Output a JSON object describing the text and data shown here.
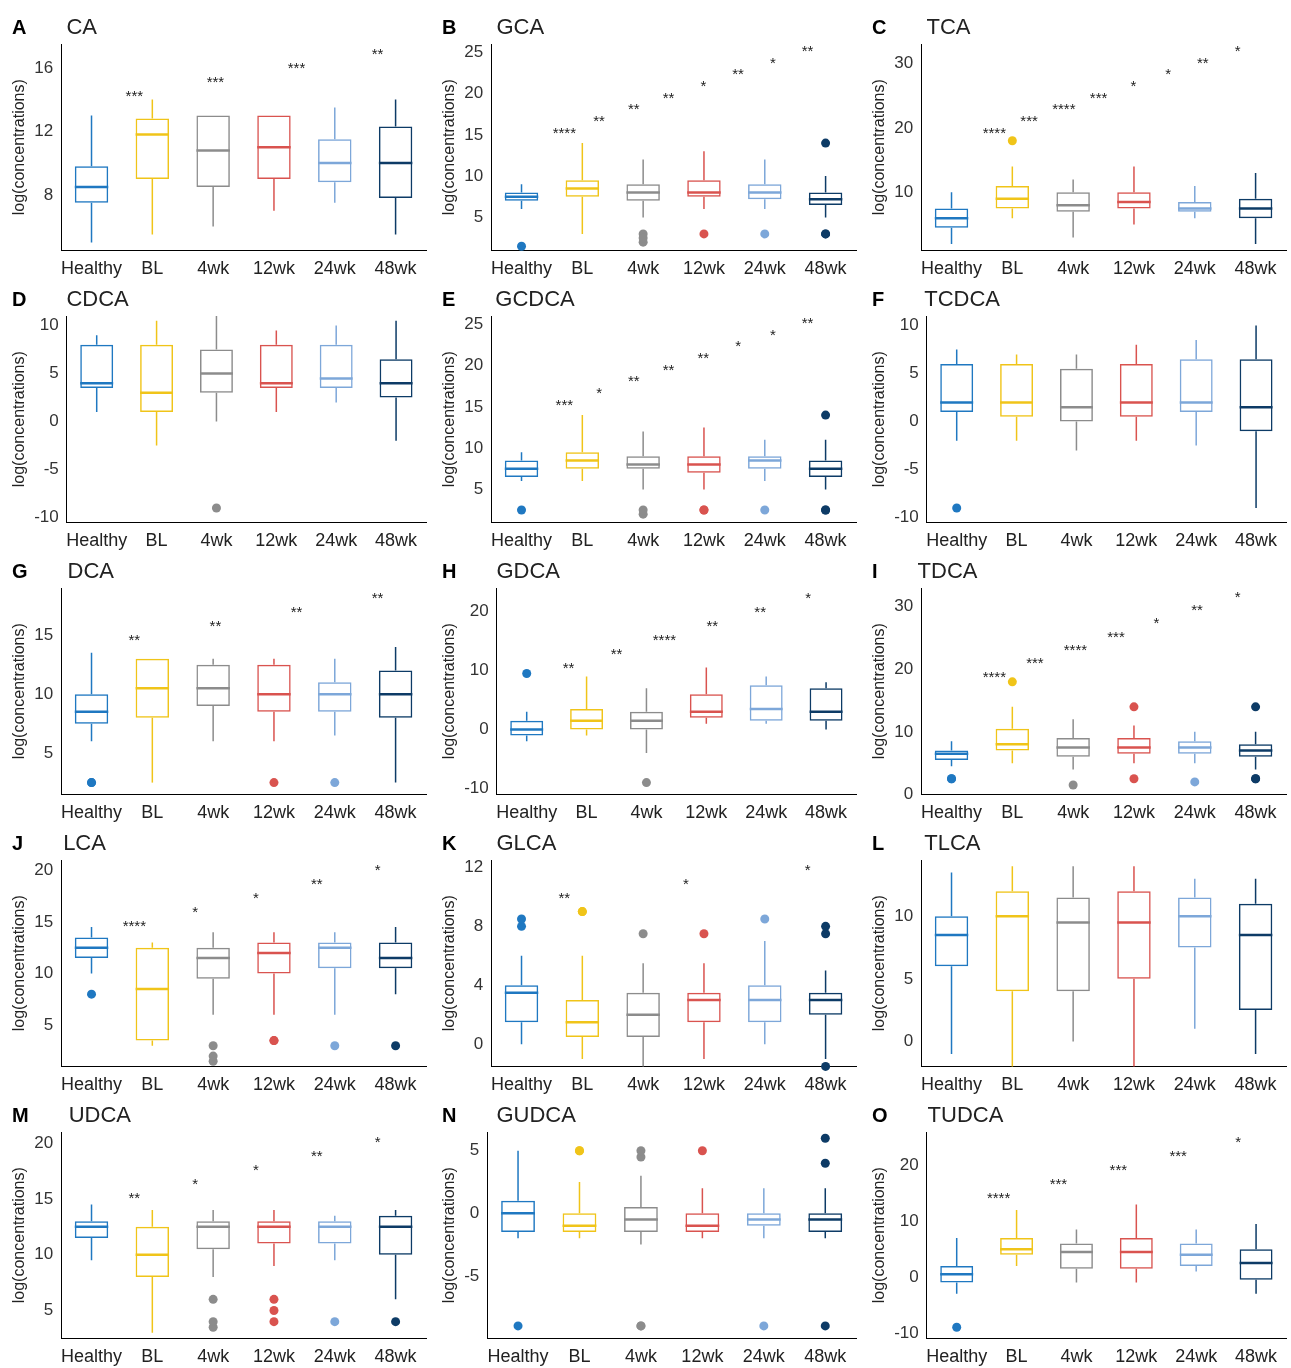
{
  "chart_data": [
    {
      "type": "box",
      "subtitle": "A",
      "title": "CA",
      "ylabel": "log(concentrations)",
      "categories": [
        "Healthy",
        "BL",
        "4wk",
        "12wk",
        "24wk",
        "48wk"
      ],
      "colors": [
        "#1f78c1",
        "#f0c419",
        "#8c8c8c",
        "#d9534f",
        "#7da7d9",
        "#0d3b66"
      ],
      "ylim": [
        4.5,
        17.5
      ],
      "yticks": [
        8,
        12,
        16
      ],
      "boxes": [
        {
          "low": 5,
          "q1": 7.5,
          "median": 8.5,
          "q3": 9.8,
          "high": 13
        },
        {
          "low": 5.5,
          "q1": 9,
          "median": 11.8,
          "q3": 12.8,
          "high": 14
        },
        {
          "low": 6,
          "q1": 8.5,
          "median": 10.8,
          "q3": 13,
          "high": 13
        },
        {
          "low": 7,
          "q1": 9,
          "median": 11,
          "q3": 13,
          "high": 13
        },
        {
          "low": 7.5,
          "q1": 8.8,
          "median": 10,
          "q3": 11.5,
          "high": 13.5
        },
        {
          "low": 5.5,
          "q1": 7.8,
          "median": 10,
          "q3": 12.3,
          "high": 14
        }
      ],
      "annotations": [
        "***",
        "***",
        "***",
        "**"
      ]
    },
    {
      "type": "box",
      "subtitle": "B",
      "title": "GCA",
      "ylabel": "log(concentrations)",
      "categories": [
        "Healthy",
        "BL",
        "4wk",
        "12wk",
        "24wk",
        "48wk"
      ],
      "colors": [
        "#1f78c1",
        "#f0c419",
        "#8c8c8c",
        "#d9534f",
        "#7da7d9",
        "#0d3b66"
      ],
      "ylim": [
        1,
        26
      ],
      "yticks": [
        5,
        10,
        15,
        20,
        25
      ],
      "boxes": [
        {
          "low": 6,
          "q1": 7,
          "median": 7.5,
          "q3": 8,
          "high": 9,
          "outliers": [
            1.5
          ]
        },
        {
          "low": 3,
          "q1": 7.5,
          "median": 8.5,
          "q3": 9.5,
          "high": 14
        },
        {
          "low": 5,
          "q1": 7,
          "median": 8,
          "q3": 9,
          "high": 12,
          "outliers": [
            2,
            3,
            2.5
          ]
        },
        {
          "low": 6,
          "q1": 7.5,
          "median": 8,
          "q3": 9.5,
          "high": 13,
          "outliers": [
            3
          ]
        },
        {
          "low": 6,
          "q1": 7.2,
          "median": 8,
          "q3": 9,
          "high": 12,
          "outliers": [
            3
          ]
        },
        {
          "low": 5,
          "q1": 6.5,
          "median": 7.2,
          "q3": 8,
          "high": 10,
          "outliers": [
            3,
            3,
            14
          ]
        }
      ],
      "annotations": [
        "****",
        "**",
        "**",
        "**",
        "*",
        "**",
        "*",
        "**"
      ]
    },
    {
      "type": "box",
      "subtitle": "C",
      "title": "TCA",
      "ylabel": "log(concentrations)",
      "categories": [
        "Healthy",
        "BL",
        "4wk",
        "12wk",
        "24wk",
        "48wk"
      ],
      "colors": [
        "#1f78c1",
        "#f0c419",
        "#8c8c8c",
        "#d9534f",
        "#7da7d9",
        "#0d3b66"
      ],
      "ylim": [
        1,
        33
      ],
      "yticks": [
        10,
        20,
        30
      ],
      "boxes": [
        {
          "low": 2,
          "q1": 4.5,
          "median": 6,
          "q3": 7.5,
          "high": 10
        },
        {
          "low": 6,
          "q1": 7.5,
          "median": 9,
          "q3": 11,
          "high": 14,
          "outliers": [
            18
          ]
        },
        {
          "low": 3,
          "q1": 7,
          "median": 8,
          "q3": 10,
          "high": 12
        },
        {
          "low": 5,
          "q1": 7.5,
          "median": 8.5,
          "q3": 10,
          "high": 14
        },
        {
          "low": 6,
          "q1": 7,
          "median": 7.5,
          "q3": 8.5,
          "high": 11
        },
        {
          "low": 2,
          "q1": 6,
          "median": 7.5,
          "q3": 9,
          "high": 13
        }
      ],
      "annotations": [
        "****",
        "***",
        "****",
        "***",
        "*",
        "*",
        "**",
        "*"
      ]
    },
    {
      "type": "box",
      "subtitle": "D",
      "title": "CDCA",
      "ylabel": "log(concentrations)",
      "categories": [
        "Healthy",
        "BL",
        "4wk",
        "12wk",
        "24wk",
        "48wk"
      ],
      "colors": [
        "#1f78c1",
        "#f0c419",
        "#8c8c8c",
        "#d9534f",
        "#7da7d9",
        "#0d3b66"
      ],
      "ylim": [
        -10.5,
        11
      ],
      "yticks": [
        -10,
        -5,
        0,
        5,
        10
      ],
      "boxes": [
        {
          "low": 1,
          "q1": 3.5,
          "median": 4,
          "q3": 8,
          "high": 9
        },
        {
          "low": -2.5,
          "q1": 1,
          "median": 3,
          "q3": 8,
          "high": 10.5
        },
        {
          "low": 0,
          "q1": 3,
          "median": 5,
          "q3": 7.5,
          "high": 11,
          "outliers": [
            -9
          ]
        },
        {
          "low": 1,
          "q1": 3.5,
          "median": 4,
          "q3": 8,
          "high": 9.5
        },
        {
          "low": 2,
          "q1": 3.5,
          "median": 4.5,
          "q3": 8,
          "high": 10
        },
        {
          "low": -2,
          "q1": 2.5,
          "median": 4,
          "q3": 6.5,
          "high": 10.5
        }
      ]
    },
    {
      "type": "box",
      "subtitle": "E",
      "title": "GCDCA",
      "ylabel": "log(concentrations)",
      "categories": [
        "Healthy",
        "BL",
        "4wk",
        "12wk",
        "24wk",
        "48wk"
      ],
      "colors": [
        "#1f78c1",
        "#f0c419",
        "#8c8c8c",
        "#d9534f",
        "#7da7d9",
        "#0d3b66"
      ],
      "ylim": [
        1,
        26
      ],
      "yticks": [
        5,
        10,
        15,
        20,
        25
      ],
      "boxes": [
        {
          "low": 6,
          "q1": 6.5,
          "median": 7.5,
          "q3": 8.5,
          "high": 9.5,
          "outliers": [
            2.5
          ]
        },
        {
          "low": 6,
          "q1": 7.5,
          "median": 8.5,
          "q3": 9.5,
          "high": 14
        },
        {
          "low": 5,
          "q1": 7.5,
          "median": 8,
          "q3": 9,
          "high": 12,
          "outliers": [
            2,
            2.5
          ]
        },
        {
          "low": 5,
          "q1": 7,
          "median": 8,
          "q3": 9,
          "high": 12.5,
          "outliers": [
            2.5,
            2.5
          ]
        },
        {
          "low": 6,
          "q1": 7.5,
          "median": 8.5,
          "q3": 9,
          "high": 11,
          "outliers": [
            2.5
          ]
        },
        {
          "low": 5,
          "q1": 6.5,
          "median": 7.5,
          "q3": 8.5,
          "high": 11,
          "outliers": [
            2.5,
            2.5,
            14
          ]
        }
      ],
      "annotations": [
        "***",
        "*",
        "**",
        "**",
        "**",
        "*",
        "*",
        "**"
      ]
    },
    {
      "type": "box",
      "subtitle": "F",
      "title": "TCDCA",
      "ylabel": "log(concentrations)",
      "categories": [
        "Healthy",
        "BL",
        "4wk",
        "12wk",
        "24wk",
        "48wk"
      ],
      "colors": [
        "#1f78c1",
        "#f0c419",
        "#8c8c8c",
        "#d9534f",
        "#7da7d9",
        "#0d3b66"
      ],
      "ylim": [
        -10.5,
        11
      ],
      "yticks": [
        -10,
        -5,
        0,
        5,
        10
      ],
      "boxes": [
        {
          "low": -2,
          "q1": 1,
          "median": 2,
          "q3": 6,
          "high": 7.5,
          "outliers": [
            -9
          ]
        },
        {
          "low": -2,
          "q1": 0.5,
          "median": 2,
          "q3": 6,
          "high": 7
        },
        {
          "low": -3,
          "q1": 0,
          "median": 1.5,
          "q3": 5.5,
          "high": 7
        },
        {
          "low": -2,
          "q1": 0.5,
          "median": 2,
          "q3": 6,
          "high": 8
        },
        {
          "low": -2.5,
          "q1": 1,
          "median": 2,
          "q3": 6.5,
          "high": 8.5
        },
        {
          "low": -9,
          "q1": -1,
          "median": 1.5,
          "q3": 6.5,
          "high": 10
        }
      ]
    },
    {
      "type": "box",
      "subtitle": "G",
      "title": "DCA",
      "ylabel": "log(concentrations)",
      "categories": [
        "Healthy",
        "BL",
        "4wk",
        "12wk",
        "24wk",
        "48wk"
      ],
      "colors": [
        "#1f78c1",
        "#f0c419",
        "#8c8c8c",
        "#d9534f",
        "#7da7d9",
        "#0d3b66"
      ],
      "ylim": [
        1.5,
        19
      ],
      "yticks": [
        5,
        10,
        15
      ],
      "boxes": [
        {
          "low": 6,
          "q1": 7.5,
          "median": 8.5,
          "q3": 10,
          "high": 13.5,
          "outliers": [
            2.5,
            2.5
          ]
        },
        {
          "low": 2.5,
          "q1": 8,
          "median": 10.5,
          "q3": 13,
          "high": 13
        },
        {
          "low": 6,
          "q1": 9,
          "median": 10.5,
          "q3": 12.5,
          "high": 13
        },
        {
          "low": 6,
          "q1": 8.5,
          "median": 10,
          "q3": 12.5,
          "high": 13,
          "outliers": [
            2.5
          ]
        },
        {
          "low": 6.5,
          "q1": 8.5,
          "median": 10,
          "q3": 11,
          "high": 13,
          "outliers": [
            2.5
          ]
        },
        {
          "low": 2.5,
          "q1": 8,
          "median": 10,
          "q3": 12,
          "high": 14
        }
      ],
      "annotations": [
        "**",
        "**",
        "**",
        "**"
      ]
    },
    {
      "type": "box",
      "subtitle": "H",
      "title": "GDCA",
      "ylabel": "log(concentrations)",
      "categories": [
        "Healthy",
        "BL",
        "4wk",
        "12wk",
        "24wk",
        "48wk"
      ],
      "colors": [
        "#1f78c1",
        "#f0c419",
        "#8c8c8c",
        "#d9534f",
        "#7da7d9",
        "#0d3b66"
      ],
      "ylim": [
        -11,
        24
      ],
      "yticks": [
        -10,
        0,
        10,
        20
      ],
      "boxes": [
        {
          "low": -2,
          "q1": -1,
          "median": 0,
          "q3": 1.5,
          "high": 3,
          "outliers": [
            9.5
          ]
        },
        {
          "low": -1,
          "q1": 0,
          "median": 1.5,
          "q3": 3.5,
          "high": 9
        },
        {
          "low": -4,
          "q1": 0,
          "median": 1.5,
          "q3": 3,
          "high": 7,
          "outliers": [
            -9
          ]
        },
        {
          "low": 1,
          "q1": 2,
          "median": 3,
          "q3": 6,
          "high": 10.5
        },
        {
          "low": 1,
          "q1": 1.5,
          "median": 3.5,
          "q3": 7.5,
          "high": 9
        },
        {
          "low": 0,
          "q1": 1.5,
          "median": 3,
          "q3": 7,
          "high": 8
        }
      ],
      "annotations": [
        "**",
        "**",
        "****",
        "**",
        "**",
        "*"
      ]
    },
    {
      "type": "box",
      "subtitle": "I",
      "title": "TDCA",
      "ylabel": "log(concentrations)",
      "categories": [
        "Healthy",
        "BL",
        "4wk",
        "12wk",
        "24wk",
        "48wk"
      ],
      "colors": [
        "#1f78c1",
        "#f0c419",
        "#8c8c8c",
        "#d9534f",
        "#7da7d9",
        "#0d3b66"
      ],
      "ylim": [
        0,
        33
      ],
      "yticks": [
        0,
        10,
        20,
        30
      ],
      "boxes": [
        {
          "low": 4.5,
          "q1": 5.5,
          "median": 6.5,
          "q3": 7,
          "high": 8.5,
          "outliers": [
            2.5,
            2.5
          ]
        },
        {
          "low": 5,
          "q1": 7,
          "median": 8,
          "q3": 10.5,
          "high": 14,
          "outliers": [
            18
          ]
        },
        {
          "low": 4,
          "q1": 6,
          "median": 7.5,
          "q3": 9,
          "high": 12,
          "outliers": [
            1.5
          ]
        },
        {
          "low": 5,
          "q1": 6.5,
          "median": 7.5,
          "q3": 9,
          "high": 11,
          "outliers": [
            2.5,
            14
          ]
        },
        {
          "low": 5,
          "q1": 6.5,
          "median": 7.5,
          "q3": 8.5,
          "high": 10,
          "outliers": [
            2
          ]
        },
        {
          "low": 4,
          "q1": 6,
          "median": 7,
          "q3": 8,
          "high": 10,
          "outliers": [
            2.5,
            2.5,
            14
          ]
        }
      ],
      "annotations": [
        "****",
        "***",
        "****",
        "***",
        "*",
        "**",
        "*"
      ]
    },
    {
      "type": "box",
      "subtitle": "J",
      "title": "LCA",
      "ylabel": "log(concentrations)",
      "categories": [
        "Healthy",
        "BL",
        "4wk",
        "12wk",
        "24wk",
        "48wk"
      ],
      "colors": [
        "#1f78c1",
        "#f0c419",
        "#8c8c8c",
        "#d9534f",
        "#7da7d9",
        "#0d3b66"
      ],
      "ylim": [
        1,
        21
      ],
      "yticks": [
        5,
        10,
        15,
        20
      ],
      "boxes": [
        {
          "low": 10,
          "q1": 11.5,
          "median": 12.5,
          "q3": 13.5,
          "high": 14.5,
          "outliers": [
            8
          ]
        },
        {
          "low": 3,
          "q1": 3.5,
          "median": 8.5,
          "q3": 12.5,
          "high": 13
        },
        {
          "low": 6,
          "q1": 9.5,
          "median": 11.5,
          "q3": 12.5,
          "high": 14,
          "outliers": [
            1.5,
            2,
            3
          ]
        },
        {
          "low": 6,
          "q1": 10,
          "median": 12,
          "q3": 13,
          "high": 14,
          "outliers": [
            3.5,
            3.5
          ]
        },
        {
          "low": 6,
          "q1": 10.5,
          "median": 12.5,
          "q3": 13,
          "high": 14,
          "outliers": [
            3
          ]
        },
        {
          "low": 8,
          "q1": 10.5,
          "median": 11.5,
          "q3": 13,
          "high": 14.5,
          "outliers": [
            3
          ]
        }
      ],
      "annotations": [
        "****",
        "*",
        "*",
        "**",
        "*"
      ]
    },
    {
      "type": "box",
      "subtitle": "K",
      "title": "GLCA",
      "ylabel": "log(concentrations)",
      "categories": [
        "Healthy",
        "BL",
        "4wk",
        "12wk",
        "24wk",
        "48wk"
      ],
      "colors": [
        "#1f78c1",
        "#f0c419",
        "#8c8c8c",
        "#d9534f",
        "#7da7d9",
        "#0d3b66"
      ],
      "ylim": [
        -1.5,
        12.5
      ],
      "yticks": [
        0,
        4,
        8,
        12
      ],
      "boxes": [
        {
          "low": 0,
          "q1": 1.5,
          "median": 3.5,
          "q3": 4,
          "high": 6,
          "outliers": [
            8,
            8.5
          ]
        },
        {
          "low": -1,
          "q1": 0.5,
          "median": 1.5,
          "q3": 3,
          "high": 6,
          "outliers": [
            9,
            9
          ]
        },
        {
          "low": -1.5,
          "q1": 0.5,
          "median": 2,
          "q3": 3.5,
          "high": 5.5,
          "outliers": [
            7.5
          ]
        },
        {
          "low": -1,
          "q1": 1.5,
          "median": 3,
          "q3": 3.5,
          "high": 5.5,
          "outliers": [
            7.5
          ]
        },
        {
          "low": 0,
          "q1": 1.5,
          "median": 3,
          "q3": 4,
          "high": 7,
          "outliers": [
            8.5
          ]
        },
        {
          "low": -1,
          "q1": 2,
          "median": 3,
          "q3": 3.5,
          "high": 5,
          "outliers": [
            -1.5,
            7.5,
            8
          ]
        }
      ],
      "annotations": [
        "**",
        "*",
        "*"
      ]
    },
    {
      "type": "box",
      "subtitle": "L",
      "title": "TLCA",
      "ylabel": "log(concentrations)",
      "categories": [
        "Healthy",
        "BL",
        "4wk",
        "12wk",
        "24wk",
        "48wk"
      ],
      "colors": [
        "#1f78c1",
        "#f0c419",
        "#8c8c8c",
        "#d9534f",
        "#7da7d9",
        "#0d3b66"
      ],
      "ylim": [
        -2,
        14.5
      ],
      "yticks": [
        0,
        5,
        10
      ],
      "boxes": [
        {
          "low": -1,
          "q1": 6,
          "median": 8.5,
          "q3": 10,
          "high": 13.5
        },
        {
          "low": -2,
          "q1": 4,
          "median": 10,
          "q3": 12,
          "high": 14
        },
        {
          "low": 0,
          "q1": 4,
          "median": 9.5,
          "q3": 11.5,
          "high": 14
        },
        {
          "low": -2,
          "q1": 5,
          "median": 9.5,
          "q3": 12,
          "high": 14
        },
        {
          "low": 1,
          "q1": 7.5,
          "median": 10,
          "q3": 11.5,
          "high": 13
        },
        {
          "low": -1,
          "q1": 2.5,
          "median": 8.5,
          "q3": 11,
          "high": 13
        }
      ]
    },
    {
      "type": "box",
      "subtitle": "M",
      "title": "UDCA",
      "ylabel": "log(concentrations)",
      "categories": [
        "Healthy",
        "BL",
        "4wk",
        "12wk",
        "24wk",
        "48wk"
      ],
      "colors": [
        "#1f78c1",
        "#f0c419",
        "#8c8c8c",
        "#d9534f",
        "#7da7d9",
        "#0d3b66"
      ],
      "ylim": [
        2.5,
        21
      ],
      "yticks": [
        5,
        10,
        15,
        20
      ],
      "boxes": [
        {
          "low": 9.5,
          "q1": 11.5,
          "median": 12.5,
          "q3": 13,
          "high": 14.5
        },
        {
          "low": 3,
          "q1": 8,
          "median": 10,
          "q3": 12.5,
          "high": 14
        },
        {
          "low": 8,
          "q1": 10.5,
          "median": 12.5,
          "q3": 13,
          "high": 14,
          "outliers": [
            3.5,
            4,
            6
          ]
        },
        {
          "low": 9,
          "q1": 11,
          "median": 12.5,
          "q3": 13,
          "high": 14,
          "outliers": [
            4,
            5,
            6
          ]
        },
        {
          "low": 9.5,
          "q1": 11,
          "median": 12.5,
          "q3": 13,
          "high": 13.5,
          "outliers": [
            4
          ]
        },
        {
          "low": 6,
          "q1": 10,
          "median": 12.5,
          "q3": 13.5,
          "high": 14,
          "outliers": [
            4
          ]
        }
      ],
      "annotations": [
        "**",
        "*",
        "*",
        "**",
        "*"
      ]
    },
    {
      "type": "box",
      "subtitle": "N",
      "title": "GUDCA",
      "ylabel": "log(concentrations)",
      "categories": [
        "Healthy",
        "BL",
        "4wk",
        "12wk",
        "24wk",
        "48wk"
      ],
      "colors": [
        "#1f78c1",
        "#f0c419",
        "#8c8c8c",
        "#d9534f",
        "#7da7d9",
        "#0d3b66"
      ],
      "ylim": [
        -10,
        6.5
      ],
      "yticks": [
        -5,
        0,
        5
      ],
      "boxes": [
        {
          "low": -2,
          "q1": -1.5,
          "median": 0,
          "q3": 1,
          "high": 5,
          "outliers": [
            -9
          ]
        },
        {
          "low": -2,
          "q1": -1.5,
          "median": -1,
          "q3": 0,
          "high": 2.5,
          "outliers": [
            5,
            5
          ]
        },
        {
          "low": -2.5,
          "q1": -1.5,
          "median": -0.5,
          "q3": 0.5,
          "high": 3,
          "outliers": [
            -9,
            -9,
            4.5,
            5
          ]
        },
        {
          "low": -2,
          "q1": -1.5,
          "median": -1,
          "q3": 0,
          "high": 2,
          "outliers": [
            5
          ]
        },
        {
          "low": -2,
          "q1": -1,
          "median": -0.5,
          "q3": 0,
          "high": 2,
          "outliers": [
            -9
          ]
        },
        {
          "low": -2,
          "q1": -1.5,
          "median": -0.5,
          "q3": 0,
          "high": 2,
          "outliers": [
            -9,
            4,
            6
          ]
        }
      ]
    },
    {
      "type": "box",
      "subtitle": "O",
      "title": "TUDCA",
      "ylabel": "log(concentrations)",
      "categories": [
        "Healthy",
        "BL",
        "4wk",
        "12wk",
        "24wk",
        "48wk"
      ],
      "colors": [
        "#1f78c1",
        "#f0c419",
        "#8c8c8c",
        "#d9534f",
        "#7da7d9",
        "#0d3b66"
      ],
      "ylim": [
        -11,
        26
      ],
      "yticks": [
        -10,
        0,
        10,
        20
      ],
      "boxes": [
        {
          "low": -3,
          "q1": -1,
          "median": 0.5,
          "q3": 2,
          "high": 7,
          "outliers": [
            -9
          ]
        },
        {
          "low": 2,
          "q1": 4,
          "median": 5,
          "q3": 7,
          "high": 12
        },
        {
          "low": -1,
          "q1": 1.5,
          "median": 4.5,
          "q3": 6,
          "high": 8.5
        },
        {
          "low": -1,
          "q1": 1.5,
          "median": 4.5,
          "q3": 7,
          "high": 13
        },
        {
          "low": 1,
          "q1": 2,
          "median": 4,
          "q3": 6,
          "high": 8.5
        },
        {
          "low": -3,
          "q1": -0.5,
          "median": 2.5,
          "q3": 5,
          "high": 9.5
        }
      ],
      "annotations": [
        "****",
        "***",
        "***",
        "***",
        "*"
      ]
    }
  ]
}
